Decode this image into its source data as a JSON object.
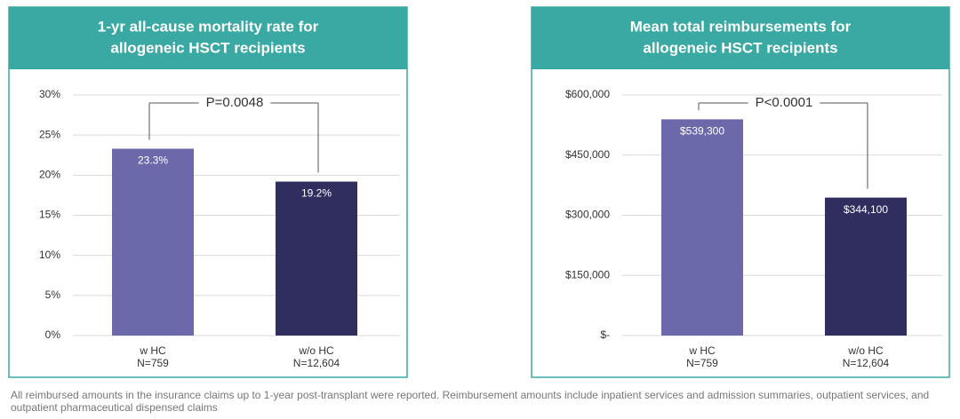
{
  "chart_data": [
    {
      "type": "bar",
      "title": [
        "1-yr all-cause mortality rate for",
        "allogeneic HSCT recipients"
      ],
      "categories": [
        "w HC",
        "w/o HC"
      ],
      "category_sublabels": [
        "N=759",
        "N=12,604"
      ],
      "values": [
        23.3,
        19.2
      ],
      "value_labels": [
        "23.3%",
        "19.2%"
      ],
      "colors": [
        "#6b69aa",
        "#2f2e5f"
      ],
      "ylim": [
        0,
        30
      ],
      "yticks": [
        {
          "value": 0,
          "label": "0%"
        },
        {
          "value": 5,
          "label": "5%"
        },
        {
          "value": 10,
          "label": "10%"
        },
        {
          "value": 15,
          "label": "15%"
        },
        {
          "value": 20,
          "label": "20%"
        },
        {
          "value": 25,
          "label": "25%"
        },
        {
          "value": 30,
          "label": "30%"
        }
      ],
      "grid": true,
      "annotation": "P=0.0048"
    },
    {
      "type": "bar",
      "title": [
        "Mean total reimbursements for",
        "allogeneic HSCT recipients"
      ],
      "categories": [
        "w HC",
        "w/o HC"
      ],
      "category_sublabels": [
        "N=759",
        "N=12,604"
      ],
      "values": [
        539300,
        344100
      ],
      "value_labels": [
        "$539,300",
        "$344,100"
      ],
      "colors": [
        "#6b69aa",
        "#2f2e5f"
      ],
      "ylim": [
        0,
        600000
      ],
      "yticks": [
        {
          "value": 0,
          "label": "$-"
        },
        {
          "value": 150000,
          "label": "$150,000"
        },
        {
          "value": 300000,
          "label": "$300,000"
        },
        {
          "value": 450000,
          "label": "$450,000"
        },
        {
          "value": 600000,
          "label": "$600,000"
        }
      ],
      "grid": true,
      "annotation": "P<0.0001"
    }
  ],
  "footnote": "All reimbursed amounts in the insurance claims up to 1-year post-transplant were reported. Reimbursement amounts include inpatient services and admission summaries, outpatient services, and outpatient pharmaceutical dispensed claims"
}
